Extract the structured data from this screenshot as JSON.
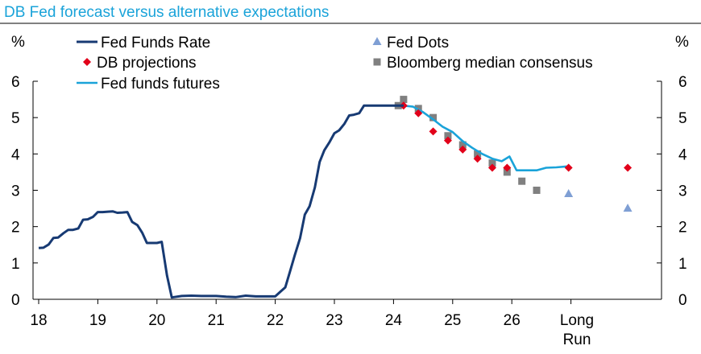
{
  "chart_data": {
    "type": "line",
    "title": "DB Fed forecast versus alternative expectations",
    "ylabel_left": "%",
    "ylabel_right": "%",
    "ylim": [
      0,
      6
    ],
    "yticks": [
      0,
      1,
      2,
      3,
      4,
      5,
      6
    ],
    "xticks": [
      {
        "x": 2018,
        "label": "18"
      },
      {
        "x": 2019,
        "label": "19"
      },
      {
        "x": 2020,
        "label": "20"
      },
      {
        "x": 2021,
        "label": "21"
      },
      {
        "x": 2022,
        "label": "22"
      },
      {
        "x": 2023,
        "label": "23"
      },
      {
        "x": 2024,
        "label": "24"
      },
      {
        "x": 2025,
        "label": "25"
      },
      {
        "x": 2026,
        "label": "26"
      }
    ],
    "long_run_label": [
      "Long",
      "Run"
    ],
    "legend_position": "top",
    "series": [
      {
        "name": "Fed Funds Rate",
        "kind": "line",
        "color": "#173a73",
        "x": [
          2018.0,
          2018.08,
          2018.17,
          2018.25,
          2018.33,
          2018.42,
          2018.5,
          2018.58,
          2018.67,
          2018.75,
          2018.83,
          2018.92,
          2019.0,
          2019.08,
          2019.17,
          2019.25,
          2019.33,
          2019.42,
          2019.5,
          2019.58,
          2019.67,
          2019.75,
          2019.83,
          2019.92,
          2020.0,
          2020.08,
          2020.17,
          2020.25,
          2020.42,
          2020.58,
          2020.75,
          2020.92,
          2021.0,
          2021.17,
          2021.33,
          2021.5,
          2021.67,
          2021.83,
          2022.0,
          2022.08,
          2022.17,
          2022.25,
          2022.33,
          2022.42,
          2022.5,
          2022.58,
          2022.67,
          2022.75,
          2022.83,
          2022.92,
          2023.0,
          2023.08,
          2023.17,
          2023.25,
          2023.33,
          2023.42,
          2023.5,
          2023.58,
          2023.67,
          2023.75,
          2023.83,
          2023.92,
          2024.0,
          2024.08,
          2024.17
        ],
        "y": [
          1.41,
          1.42,
          1.51,
          1.69,
          1.7,
          1.82,
          1.91,
          1.91,
          1.95,
          2.19,
          2.2,
          2.27,
          2.4,
          2.4,
          2.41,
          2.42,
          2.38,
          2.39,
          2.4,
          2.13,
          2.04,
          1.83,
          1.55,
          1.55,
          1.55,
          1.58,
          0.65,
          0.05,
          0.09,
          0.1,
          0.09,
          0.09,
          0.09,
          0.07,
          0.06,
          0.1,
          0.08,
          0.08,
          0.08,
          0.2,
          0.33,
          0.77,
          1.21,
          1.68,
          2.33,
          2.56,
          3.08,
          3.78,
          4.1,
          4.33,
          4.57,
          4.65,
          4.83,
          5.06,
          5.08,
          5.12,
          5.33,
          5.33,
          5.33,
          5.33,
          5.33,
          5.33,
          5.33,
          5.33,
          5.33
        ]
      },
      {
        "name": "DB projections",
        "kind": "diamond",
        "color": "#e2001a",
        "x": [
          2024.17,
          2024.42,
          2024.67,
          2024.92,
          2025.17,
          2025.42,
          2025.67,
          2025.92,
          2026.96,
          2027.96
        ],
        "y": [
          5.33,
          5.12,
          4.62,
          4.37,
          4.12,
          3.87,
          3.62,
          3.62,
          3.62,
          3.62
        ]
      },
      {
        "name": "Fed funds futures",
        "kind": "line",
        "color": "#1aa3d9",
        "x": [
          2024.0,
          2024.17,
          2024.33,
          2024.5,
          2024.67,
          2024.83,
          2025.0,
          2025.17,
          2025.33,
          2025.5,
          2025.67,
          2025.83,
          2025.96,
          2026.08,
          2026.25,
          2026.42,
          2026.58,
          2026.75,
          2026.96
        ],
        "y": [
          5.33,
          5.33,
          5.3,
          5.15,
          4.95,
          4.75,
          4.6,
          4.35,
          4.17,
          4.0,
          3.87,
          3.8,
          3.93,
          3.55,
          3.55,
          3.55,
          3.62,
          3.63,
          3.66
        ]
      },
      {
        "name": "Fed Dots",
        "kind": "triangle",
        "color": "#7f9fd4",
        "x": [
          2026.96,
          2027.96
        ],
        "y": [
          2.9,
          2.5
        ]
      },
      {
        "name": "Bloomberg median consensus",
        "kind": "square",
        "color": "#808080",
        "x": [
          2024.08,
          2024.17,
          2024.42,
          2024.67,
          2024.92,
          2025.17,
          2025.42,
          2025.67,
          2025.92,
          2026.17,
          2026.42
        ],
        "y": [
          5.33,
          5.5,
          5.25,
          5.0,
          4.5,
          4.25,
          4.0,
          3.75,
          3.5,
          3.25,
          3.0
        ]
      }
    ]
  }
}
